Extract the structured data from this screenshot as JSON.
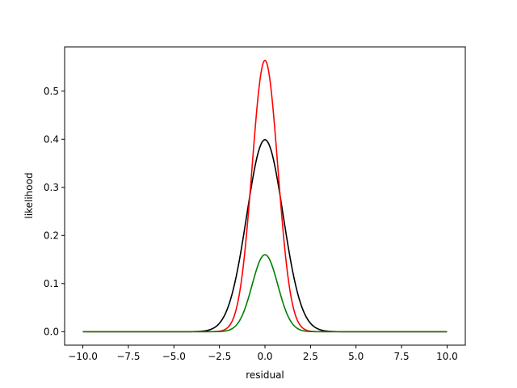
{
  "chart_data": {
    "type": "line",
    "xlabel": "residual",
    "ylabel": "likelihood",
    "xlim": [
      -11.0,
      11.0
    ],
    "ylim": [
      -0.028,
      0.592
    ],
    "xticks": [
      -10.0,
      -7.5,
      -5.0,
      -2.5,
      0.0,
      2.5,
      5.0,
      7.5,
      10.0
    ],
    "xtick_labels": [
      "−10.0",
      "−7.5",
      "−5.0",
      "−2.5",
      "0.0",
      "2.5",
      "5.0",
      "7.5",
      "10.0"
    ],
    "yticks": [
      0.0,
      0.1,
      0.2,
      0.3,
      0.4,
      0.5
    ],
    "ytick_labels": [
      "0.0",
      "0.1",
      "0.2",
      "0.3",
      "0.4",
      "0.5"
    ],
    "grid": false,
    "x_range": [
      -10.0,
      10.0
    ],
    "series": [
      {
        "color": "#000000",
        "peak": 0.399,
        "sigma": 1.0,
        "peak_x": 0.0
      },
      {
        "color": "#ff0000",
        "peak": 0.564,
        "sigma": 0.707,
        "peak_x": 0.0
      },
      {
        "color": "#008000",
        "peak": 0.16,
        "sigma": 0.707,
        "peak_x": 0.0
      }
    ]
  }
}
